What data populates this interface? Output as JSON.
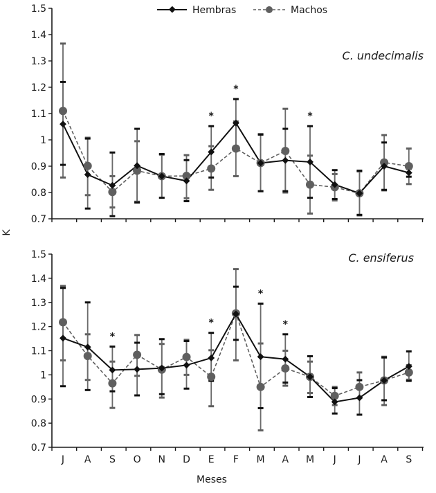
{
  "chart_data": {
    "type": "line",
    "ylabel": "K",
    "xlabel": "Meses",
    "categories": [
      "J",
      "A",
      "S",
      "O",
      "N",
      "D",
      "E",
      "F",
      "M",
      "A",
      "M",
      "J",
      "J",
      "A",
      "S"
    ],
    "ylim": [
      0.7,
      1.5
    ],
    "yticks": [
      "0.7",
      "0.8",
      "0.9",
      "1",
      "1.1",
      "1.2",
      "1.3",
      "1.4",
      "1.5"
    ],
    "grid": false,
    "legend": {
      "placement": "top-center",
      "entries": [
        {
          "name": "Hembras",
          "style": "solid",
          "marker": "diamond",
          "color": "#111111"
        },
        {
          "name": "Machos",
          "style": "dashed",
          "marker": "circle",
          "color": "#5f5f5f"
        }
      ]
    },
    "panels": [
      {
        "title": "C. undecimalis",
        "significant": [
          6,
          7,
          10
        ],
        "series": [
          {
            "name": "Hembras",
            "values": [
              1.06,
              0.868,
              0.827,
              0.902,
              0.862,
              0.844,
              0.954,
              1.064,
              0.912,
              0.922,
              0.916,
              0.83,
              0.797,
              0.9,
              0.875
            ],
            "err_low": [
              0.905,
              0.739,
              0.71,
              0.762,
              0.78,
              0.767,
              0.857,
              0.973,
              0.805,
              0.805,
              0.78,
              0.775,
              0.715,
              0.81,
              0.86
            ],
            "err_high": [
              1.22,
              1.005,
              0.952,
              1.042,
              0.946,
              0.923,
              1.052,
              1.155,
              1.02,
              1.042,
              1.052,
              0.885,
              0.883,
              0.99,
              0.89
            ]
          },
          {
            "name": "Machos",
            "values": [
              1.11,
              0.901,
              0.802,
              0.883,
              0.862,
              0.863,
              0.891,
              0.967,
              0.912,
              0.958,
              0.83,
              0.82,
              0.797,
              0.914,
              0.9
            ],
            "err_low": [
              0.857,
              0.79,
              0.743,
              0.765,
              0.78,
              0.778,
              0.81,
              0.862,
              0.805,
              0.8,
              0.72,
              0.77,
              0.713,
              0.808,
              0.832
            ],
            "err_high": [
              1.366,
              1.008,
              0.862,
              0.995,
              0.944,
              0.942,
              0.976,
              1.07,
              1.022,
              1.118,
              0.94,
              0.87,
              0.88,
              1.018,
              0.967
            ]
          }
        ]
      },
      {
        "title": "C. ensiferus",
        "significant": [
          2,
          6,
          8,
          9
        ],
        "series": [
          {
            "name": "Hembras",
            "values": [
              1.152,
              1.115,
              1.02,
              1.023,
              1.028,
              1.04,
              1.07,
              1.252,
              1.075,
              1.065,
              0.992,
              0.888,
              0.905,
              0.977,
              1.035
            ],
            "err_low": [
              0.953,
              0.937,
              0.932,
              0.915,
              0.92,
              0.943,
              0.975,
              1.145,
              0.862,
              0.968,
              0.908,
              0.84,
              0.835,
              0.895,
              0.975
            ],
            "err_high": [
              1.36,
              1.3,
              1.117,
              1.133,
              1.148,
              1.14,
              1.174,
              1.365,
              1.295,
              1.168,
              1.077,
              0.945,
              0.978,
              1.072,
              1.097
            ]
          },
          {
            "name": "Machos",
            "values": [
              1.218,
              1.078,
              0.965,
              1.083,
              1.022,
              1.074,
              0.992,
              1.255,
              0.95,
              1.027,
              0.992,
              0.913,
              0.95,
              0.977,
              1.01
            ],
            "err_low": [
              1.06,
              0.979,
              0.863,
              0.996,
              0.906,
              1.0,
              0.87,
              1.06,
              0.77,
              0.955,
              0.925,
              0.875,
              0.905,
              0.875,
              0.98
            ],
            "err_high": [
              1.368,
              1.168,
              1.055,
              1.165,
              1.128,
              1.145,
              1.102,
              1.438,
              1.13,
              1.1,
              1.055,
              0.95,
              1.01,
              1.075,
              1.04
            ]
          }
        ]
      }
    ],
    "significance_marker": "*"
  }
}
